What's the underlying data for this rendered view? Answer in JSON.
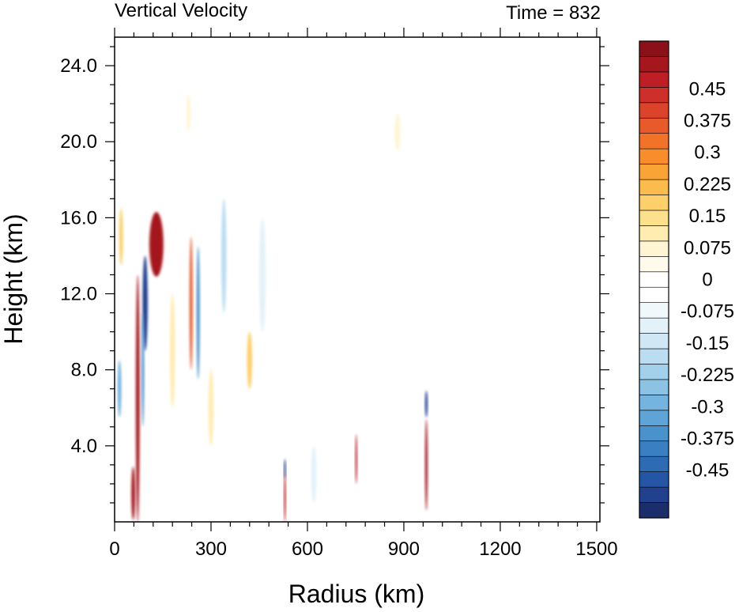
{
  "chart_data": {
    "type": "heatmap",
    "title": "Vertical Velocity",
    "subtitle": "Time = 832",
    "xlabel": "Radius (km)",
    "ylabel": "Height (km)",
    "xlim": [
      0,
      1510
    ],
    "ylim": [
      0,
      25.5
    ],
    "xticks": [
      {
        "value": 0,
        "label": "0"
      },
      {
        "value": 300,
        "label": "300"
      },
      {
        "value": 600,
        "label": "600"
      },
      {
        "value": 900,
        "label": "900"
      },
      {
        "value": 1200,
        "label": "1200"
      },
      {
        "value": 1500,
        "label": "1500"
      }
    ],
    "yticks": [
      {
        "value": 4,
        "label": "4.0"
      },
      {
        "value": 8,
        "label": "8.0"
      },
      {
        "value": 12,
        "label": "12.0"
      },
      {
        "value": 16,
        "label": "16.0"
      },
      {
        "value": 20,
        "label": "20.0"
      },
      {
        "value": 24,
        "label": "24.0"
      }
    ],
    "colorbar": {
      "min": -0.5625,
      "max": 0.5625,
      "step": 0.0375,
      "colors": [
        "#1c2d6b",
        "#21418f",
        "#2556a5",
        "#2e6bb5",
        "#3a7fc2",
        "#4a92cc",
        "#5ea4d6",
        "#74b4de",
        "#8cc3e5",
        "#a3d1ec",
        "#bbddf1",
        "#d0e8f6",
        "#e3f1f9",
        "#f1f8fc",
        "#ffffff",
        "#ffffff",
        "#fffbec",
        "#fff5d2",
        "#ffecb0",
        "#fde08c",
        "#fdd06b",
        "#fcbc4c",
        "#fba436",
        "#f98d2c",
        "#f27328",
        "#e85a2a",
        "#dc432a",
        "#cf2f2b",
        "#bd1f25",
        "#a5161d",
        "#8b1019"
      ],
      "labels": [
        {
          "value": 0.45,
          "label": "0.45"
        },
        {
          "value": 0.375,
          "label": "0.375"
        },
        {
          "value": 0.3,
          "label": "0.3"
        },
        {
          "value": 0.225,
          "label": "0.225"
        },
        {
          "value": 0.15,
          "label": "0.15"
        },
        {
          "value": 0.075,
          "label": "0.075"
        },
        {
          "value": 0,
          "label": "0"
        },
        {
          "value": -0.075,
          "label": "-0.075"
        },
        {
          "value": -0.15,
          "label": "-0.15"
        },
        {
          "value": -0.225,
          "label": "-0.225"
        },
        {
          "value": -0.3,
          "label": "-0.3"
        },
        {
          "value": -0.375,
          "label": "-0.375"
        },
        {
          "value": -0.45,
          "label": "-0.45"
        }
      ]
    },
    "features": [
      {
        "x": 130,
        "y": 14.6,
        "rx": 22,
        "ry": 1.7,
        "value": 0.56
      },
      {
        "x": 72,
        "y": 6.5,
        "rx": 6,
        "ry": 6.5,
        "value": 0.56
      },
      {
        "x": 58,
        "y": 1.5,
        "rx": 6,
        "ry": 1.4,
        "value": 0.56
      },
      {
        "x": 95,
        "y": 11.5,
        "rx": 8,
        "ry": 2.5,
        "value": -0.5
      },
      {
        "x": 88,
        "y": 8,
        "rx": 4,
        "ry": 3,
        "value": -0.35
      },
      {
        "x": 238,
        "y": 11.5,
        "rx": 5,
        "ry": 3.5,
        "value": 0.4
      },
      {
        "x": 260,
        "y": 11,
        "rx": 5,
        "ry": 3.5,
        "value": -0.35
      },
      {
        "x": 180,
        "y": 9,
        "rx": 8,
        "ry": 3,
        "value": 0.12
      },
      {
        "x": 15,
        "y": 7,
        "rx": 6,
        "ry": 1.5,
        "value": -0.3
      },
      {
        "x": 20,
        "y": 15,
        "rx": 6,
        "ry": 1.5,
        "value": 0.2
      },
      {
        "x": 340,
        "y": 14,
        "rx": 8,
        "ry": 3,
        "value": -0.18
      },
      {
        "x": 420,
        "y": 8.5,
        "rx": 8,
        "ry": 1.5,
        "value": 0.2
      },
      {
        "x": 300,
        "y": 6,
        "rx": 8,
        "ry": 2,
        "value": 0.12
      },
      {
        "x": 530,
        "y": 1.3,
        "rx": 3,
        "ry": 1.3,
        "value": 0.5
      },
      {
        "x": 530,
        "y": 2.8,
        "rx": 3,
        "ry": 0.5,
        "value": -0.5
      },
      {
        "x": 752,
        "y": 3.3,
        "rx": 3,
        "ry": 1.3,
        "value": 0.5
      },
      {
        "x": 970,
        "y": 3.0,
        "rx": 4,
        "ry": 2.4,
        "value": 0.56
      },
      {
        "x": 970,
        "y": 6.2,
        "rx": 4,
        "ry": 0.7,
        "value": -0.5
      },
      {
        "x": 460,
        "y": 13,
        "rx": 10,
        "ry": 3,
        "value": -0.1
      },
      {
        "x": 230,
        "y": 21.5,
        "rx": 6,
        "ry": 1,
        "value": 0.1
      },
      {
        "x": 880,
        "y": 20.5,
        "rx": 8,
        "ry": 1,
        "value": 0.08
      },
      {
        "x": 620,
        "y": 2.5,
        "rx": 8,
        "ry": 1.5,
        "value": -0.08
      }
    ]
  }
}
